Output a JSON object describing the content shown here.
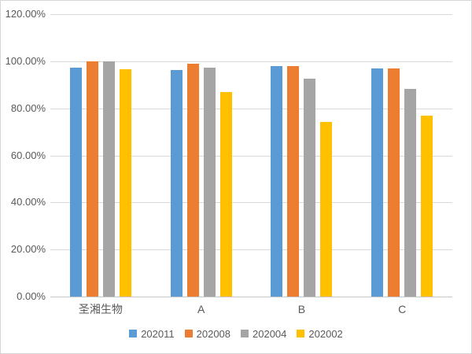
{
  "chart_data": {
    "type": "bar",
    "title": "",
    "categories": [
      "圣湘生物",
      "A",
      "B",
      "C"
    ],
    "series": [
      {
        "name": "202011",
        "color": "#5B9BD5",
        "values": [
          97.2,
          96.4,
          98.0,
          97.0
        ]
      },
      {
        "name": "202008",
        "color": "#ED7D31",
        "values": [
          100.0,
          99.1,
          97.9,
          97.1
        ]
      },
      {
        "name": "202004",
        "color": "#A5A5A5",
        "values": [
          99.9,
          97.3,
          92.5,
          88.3
        ]
      },
      {
        "name": "202002",
        "color": "#FFC000",
        "values": [
          96.6,
          86.8,
          74.3,
          77.0
        ]
      }
    ],
    "xlabel": "",
    "ylabel": "",
    "ylim": [
      0,
      120
    ],
    "y_ticks": [
      {
        "value": 0,
        "label": "0.00%"
      },
      {
        "value": 20,
        "label": "20.00%"
      },
      {
        "value": 40,
        "label": "40.00%"
      },
      {
        "value": 60,
        "label": "60.00%"
      },
      {
        "value": 80,
        "label": "80.00%"
      },
      {
        "value": 100,
        "label": "100.00%"
      },
      {
        "value": 120,
        "label": "120.00%"
      }
    ],
    "grid": true,
    "legend_position": "bottom",
    "colors": {
      "gridline": "#D9D9D9",
      "axis_line": "#C6C6C6",
      "text": "#595959",
      "background": "#FFFFFF",
      "frame_border": "#D6D6D6"
    }
  }
}
